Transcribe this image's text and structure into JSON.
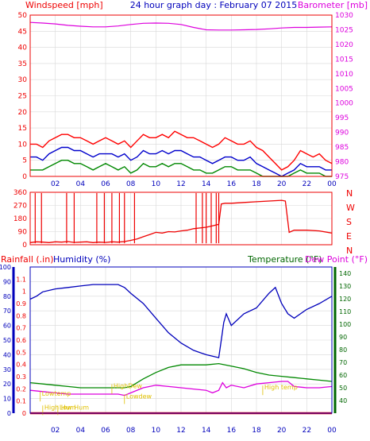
{
  "colors": {
    "background": "#ffffff",
    "axis_red": "#ee0000",
    "axis_magenta": "#dd00dd",
    "axis_blue": "#0000bb",
    "axis_green": "#006600",
    "grid": "#d8d8d8",
    "wind_max": "#ff0000",
    "wind_avg": "#0000cc",
    "wind_min": "#008800",
    "barometer": "#dd00dd",
    "direction": "#ee0000",
    "humidity": "#0000bb",
    "temperature": "#008800",
    "dew_point": "#dd00dd",
    "rain": "#ee0000",
    "annotation": "#e0c000"
  },
  "chart_data": [
    {
      "type": "line",
      "title": "24 hour graph day : February 07 2015",
      "left_axis_label": "Windspeed [mph]",
      "right_axis_label": "Barometer [mb]",
      "ylim_left": [
        0,
        50
      ],
      "ylim_right": [
        975,
        1030
      ],
      "y_ticks_left": [
        0,
        5,
        10,
        15,
        20,
        25,
        30,
        35,
        40,
        45,
        50
      ],
      "y_ticks_right": [
        975,
        980,
        985,
        990,
        995,
        1000,
        1005,
        1010,
        1015,
        1020,
        1025,
        1030
      ],
      "x_ticks": [
        "02",
        "04",
        "06",
        "08",
        "10",
        "12",
        "14",
        "16",
        "18",
        "20",
        "22",
        "00"
      ],
      "xlim_hours": [
        0,
        24
      ],
      "series": [
        {
          "role": "wind_max",
          "x": [
            0,
            0.5,
            1,
            1.5,
            2,
            2.5,
            3,
            3.5,
            4,
            4.5,
            5,
            5.5,
            6,
            6.5,
            7,
            7.5,
            8,
            8.5,
            9,
            9.5,
            10,
            10.5,
            11,
            11.5,
            12,
            12.5,
            13,
            13.5,
            14,
            14.5,
            15,
            15.5,
            16,
            16.5,
            17,
            17.5,
            18,
            18.5,
            19,
            19.5,
            20,
            20.5,
            21,
            21.5,
            22,
            22.5,
            23,
            23.5,
            24
          ],
          "values": [
            10,
            10,
            9,
            11,
            12,
            13,
            13,
            12,
            12,
            11,
            10,
            11,
            12,
            11,
            10,
            11,
            9,
            11,
            13,
            12,
            12,
            13,
            12,
            14,
            13,
            12,
            12,
            11,
            10,
            9,
            10,
            12,
            11,
            10,
            10,
            11,
            9,
            8,
            6,
            4,
            2,
            3,
            5,
            8,
            7,
            6,
            7,
            5,
            4
          ]
        },
        {
          "role": "wind_avg",
          "x": [
            0,
            0.5,
            1,
            1.5,
            2,
            2.5,
            3,
            3.5,
            4,
            4.5,
            5,
            5.5,
            6,
            6.5,
            7,
            7.5,
            8,
            8.5,
            9,
            9.5,
            10,
            10.5,
            11,
            11.5,
            12,
            12.5,
            13,
            13.5,
            14,
            14.5,
            15,
            15.5,
            16,
            16.5,
            17,
            17.5,
            18,
            18.5,
            19,
            19.5,
            20,
            20.5,
            21,
            21.5,
            22,
            22.5,
            23,
            23.5,
            24
          ],
          "values": [
            6,
            6,
            5,
            7,
            8,
            9,
            9,
            8,
            8,
            7,
            6,
            7,
            7,
            7,
            6,
            7,
            5,
            6,
            8,
            7,
            7,
            8,
            7,
            8,
            8,
            7,
            6,
            6,
            5,
            4,
            5,
            6,
            6,
            5,
            5,
            6,
            4,
            3,
            2,
            1,
            0,
            1,
            2,
            4,
            3,
            3,
            3,
            2,
            2
          ]
        },
        {
          "role": "wind_min",
          "x": [
            0,
            0.5,
            1,
            1.5,
            2,
            2.5,
            3,
            3.5,
            4,
            4.5,
            5,
            5.5,
            6,
            6.5,
            7,
            7.5,
            8,
            8.5,
            9,
            9.5,
            10,
            10.5,
            11,
            11.5,
            12,
            12.5,
            13,
            13.5,
            14,
            14.5,
            15,
            15.5,
            16,
            16.5,
            17,
            17.5,
            18,
            18.5,
            19,
            19.5,
            20,
            20.5,
            21,
            21.5,
            22,
            22.5,
            23,
            23.5,
            24
          ],
          "values": [
            2,
            2,
            2,
            3,
            4,
            5,
            5,
            4,
            4,
            3,
            2,
            3,
            4,
            3,
            2,
            3,
            1,
            2,
            4,
            3,
            3,
            4,
            3,
            4,
            4,
            3,
            2,
            2,
            1,
            1,
            2,
            3,
            3,
            2,
            2,
            2,
            1,
            0,
            0,
            0,
            0,
            0,
            1,
            2,
            1,
            1,
            1,
            0,
            0
          ]
        },
        {
          "role": "barometer",
          "x": [
            0,
            1,
            2,
            3,
            4,
            5,
            6,
            7,
            8,
            9,
            10,
            11,
            12,
            13,
            14,
            15,
            16,
            17,
            18,
            19,
            20,
            21,
            22,
            23,
            24
          ],
          "values": [
            1027.5,
            1027.3,
            1027,
            1026.5,
            1026.2,
            1026,
            1026,
            1026.3,
            1026.8,
            1027.2,
            1027.3,
            1027.2,
            1026.8,
            1025.8,
            1025,
            1024.9,
            1024.9,
            1025,
            1025.1,
            1025.3,
            1025.6,
            1025.8,
            1025.8,
            1025.9,
            1026
          ]
        }
      ]
    },
    {
      "type": "line",
      "ylim": [
        0,
        360
      ],
      "y_ticks": [
        0,
        90,
        180,
        270,
        360
      ],
      "direction_labels": [
        "N",
        "W",
        "S",
        "E",
        "N"
      ],
      "xlim_hours": [
        0,
        24
      ],
      "series": [
        {
          "role": "direction",
          "x": [
            0,
            0.5,
            1,
            1.5,
            2,
            2.5,
            3,
            3.5,
            4,
            4.5,
            5,
            5.5,
            6,
            6.5,
            7,
            7.5,
            8,
            8.5,
            9,
            9.5,
            10,
            10.5,
            11,
            11.5,
            12,
            12.5,
            13,
            13.5,
            14,
            14.5,
            15,
            15.2,
            15.5,
            16,
            17,
            18,
            19,
            20,
            20.3,
            20.6,
            21,
            22,
            23,
            24
          ],
          "values": [
            15,
            20,
            18,
            15,
            20,
            18,
            22,
            16,
            18,
            20,
            15,
            18,
            16,
            20,
            18,
            22,
            30,
            40,
            55,
            70,
            85,
            80,
            90,
            88,
            95,
            100,
            110,
            115,
            120,
            130,
            140,
            280,
            285,
            285,
            290,
            295,
            300,
            305,
            300,
            85,
            100,
            100,
            95,
            80
          ]
        }
      ],
      "spikes_x": [
        0.4,
        0.9,
        2.9,
        3.5,
        5.3,
        5.9,
        6.5,
        7.1,
        7.5,
        8.3,
        13.2,
        13.7,
        14,
        14.4,
        14.8,
        15
      ]
    },
    {
      "type": "line",
      "left_axis_label": "Rainfall (.in)",
      "left2_axis_label": "Humidity (%)",
      "right_axis_label": "Temperature (°F)",
      "right2_axis_label": "Dew Point (°F)",
      "ylim_rain": [
        0,
        1.2
      ],
      "ylim_humidity": [
        0,
        100
      ],
      "ylim_temperature": [
        30,
        145
      ],
      "y_ticks_rain": [
        0,
        0.1,
        0.2,
        0.3,
        0.4,
        0.5,
        0.6,
        0.7,
        0.8,
        0.9,
        1,
        1.1
      ],
      "y_ticks_humidity": [
        0,
        10,
        20,
        30,
        40,
        50,
        60,
        70,
        80,
        90,
        100
      ],
      "y_ticks_temperature": [
        40,
        50,
        60,
        70,
        80,
        90,
        100,
        110,
        120,
        130,
        140
      ],
      "x_ticks": [
        "02",
        "04",
        "06",
        "08",
        "10",
        "12",
        "14",
        "16",
        "18",
        "20",
        "22",
        "00"
      ],
      "xlim_hours": [
        0,
        24
      ],
      "annotations": [
        {
          "text": "HighDew",
          "x": 6.5,
          "y": 49
        },
        {
          "text": "Lowtemp",
          "x": 0.8,
          "y": 43
        },
        {
          "text": "Lowdew",
          "x": 7.5,
          "y": 41
        },
        {
          "text": "High temp",
          "x": 18.5,
          "y": 48
        },
        {
          "text": "High Hum",
          "x": 1,
          "y": 2
        },
        {
          "text": "Low Hum",
          "x": 2.2,
          "y": 2
        }
      ],
      "series": [
        {
          "role": "humidity",
          "x": [
            0,
            0.5,
            1,
            2,
            3,
            4,
            5,
            6,
            7,
            7.5,
            8,
            9,
            10,
            11,
            12,
            13,
            14,
            14.5,
            15,
            15.2,
            15.4,
            15.6,
            16,
            17,
            18,
            19,
            19.5,
            20,
            20.5,
            21,
            22,
            23,
            24
          ],
          "values": [
            78,
            80,
            83,
            85,
            86,
            87,
            88,
            88,
            88,
            86,
            82,
            75,
            65,
            55,
            48,
            43,
            40,
            39,
            38,
            50,
            62,
            68,
            60,
            68,
            72,
            82,
            86,
            75,
            68,
            65,
            71,
            75,
            80
          ]
        },
        {
          "role": "temperature",
          "x": [
            0,
            1,
            2,
            3,
            4,
            5,
            6,
            7,
            7.5,
            8,
            9,
            10,
            11,
            12,
            13,
            14,
            15,
            16,
            17,
            18,
            19,
            20,
            21,
            22,
            23,
            24
          ],
          "values": [
            54,
            53,
            52,
            51,
            50,
            50,
            50,
            50,
            50,
            51,
            57,
            62,
            66,
            68,
            68,
            68,
            69,
            67,
            65,
            62,
            60,
            59,
            58,
            57,
            56,
            55
          ]
        },
        {
          "role": "dew_point",
          "x": [
            0,
            1,
            2,
            3,
            4,
            5,
            6,
            7,
            7.5,
            8,
            9,
            10,
            11,
            12,
            13,
            14,
            14.5,
            15,
            15.3,
            15.6,
            16,
            17,
            18,
            19,
            20,
            20.5,
            21,
            22,
            23,
            24
          ],
          "values": [
            48,
            47,
            46,
            45,
            45,
            45,
            45,
            45,
            44,
            46,
            50,
            52,
            51,
            50,
            49,
            48,
            46,
            48,
            54,
            50,
            52,
            50,
            53,
            54,
            55,
            55,
            51,
            50,
            50,
            51
          ]
        },
        {
          "role": "rain",
          "x": [
            0,
            24
          ],
          "values": [
            0,
            0
          ]
        }
      ]
    }
  ]
}
